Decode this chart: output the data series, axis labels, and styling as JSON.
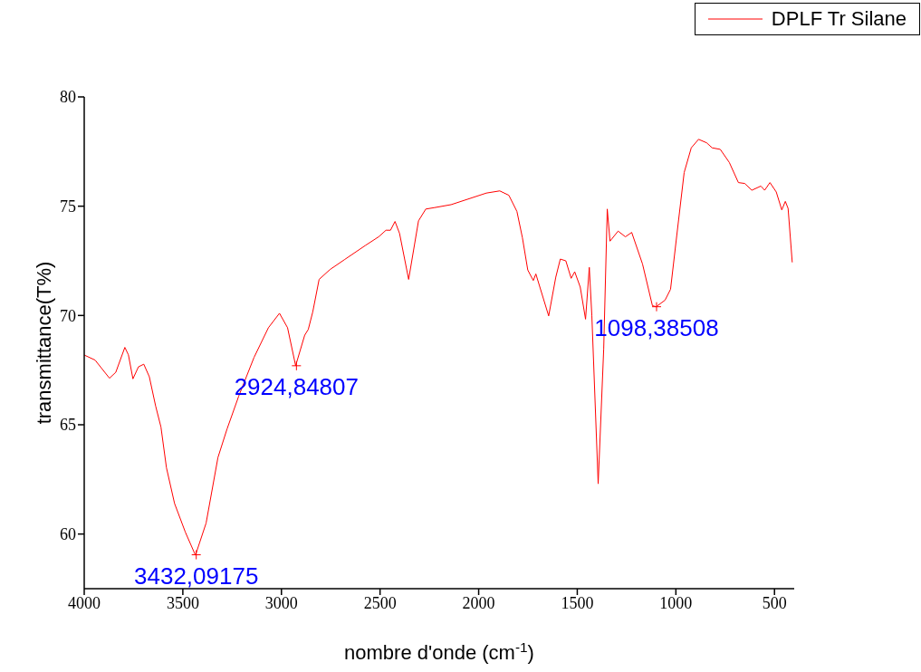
{
  "chart_data": {
    "type": "line",
    "xlabel": "nombre d'onde (cm$^{-1}$)",
    "ylabel": "transmittance(T%)",
    "xlim": [
      4000,
      400
    ],
    "xticks": [
      4000,
      3500,
      3000,
      2500,
      2000,
      1500,
      1000,
      500
    ],
    "ylim": [
      57.5,
      80
    ],
    "yticks": [
      60,
      65,
      70,
      75,
      80
    ],
    "grid": false,
    "legend": "top right",
    "marker": "none",
    "line_style": "solid",
    "x": [
      4000,
      3945,
      3872,
      3840,
      3794,
      3776,
      3753,
      3725,
      3698,
      3670,
      3638,
      3611,
      3583,
      3542,
      3487,
      3436,
      3382,
      3322,
      3276,
      3217,
      3139,
      3066,
      3010,
      2969,
      2928,
      2882,
      2864,
      2841,
      2809,
      2754,
      2681,
      2575,
      2507,
      2470,
      2447,
      2424,
      2401,
      2355,
      2305,
      2268,
      2227,
      2140,
      1961,
      1893,
      1847,
      1806,
      1778,
      1751,
      1723,
      1710,
      1645,
      1609,
      1586,
      1558,
      1531,
      1513,
      1485,
      1458,
      1439,
      1426,
      1394,
      1366,
      1348,
      1334,
      1293,
      1256,
      1224,
      1169,
      1119,
      1100,
      1055,
      1027,
      995,
      958,
      922,
      885,
      844,
      816,
      775,
      729,
      683,
      651,
      615,
      569,
      550,
      523,
      491,
      463,
      445,
      431,
      410
    ],
    "series": [
      {
        "name": "DPLF Tr Silane",
        "color": "#ff0000",
        "values": [
          68.19,
          67.96,
          67.13,
          67.4,
          68.54,
          68.2,
          67.1,
          67.65,
          67.77,
          67.2,
          65.86,
          64.9,
          63.03,
          61.4,
          60.08,
          59.03,
          60.5,
          63.5,
          64.8,
          66.3,
          68.08,
          69.44,
          70.1,
          69.44,
          67.7,
          69.1,
          69.36,
          70.17,
          71.65,
          72.1,
          72.55,
          73.2,
          73.6,
          73.9,
          73.9,
          74.3,
          73.75,
          71.65,
          74.33,
          74.87,
          74.93,
          75.07,
          75.6,
          75.7,
          75.5,
          74.76,
          73.55,
          72.08,
          71.6,
          71.9,
          69.98,
          71.75,
          72.58,
          72.5,
          71.7,
          72.0,
          71.3,
          69.83,
          72.2,
          69.98,
          62.3,
          68.47,
          74.87,
          73.4,
          73.86,
          73.6,
          73.8,
          72.35,
          70.45,
          70.4,
          70.7,
          71.2,
          73.7,
          76.54,
          77.67,
          78.06,
          77.9,
          77.67,
          77.6,
          77.0,
          76.08,
          76.04,
          75.73,
          75.92,
          75.73,
          76.08,
          75.65,
          74.83,
          75.22,
          74.9,
          72.43
        ]
      }
    ],
    "annotations": [
      {
        "text": "3432,09175",
        "x": 3432,
        "y": 59.05
      },
      {
        "text": "2924,84807",
        "x": 2924,
        "y": 67.7
      },
      {
        "text": "1098,38508",
        "x": 1098,
        "y": 70.4
      }
    ]
  }
}
